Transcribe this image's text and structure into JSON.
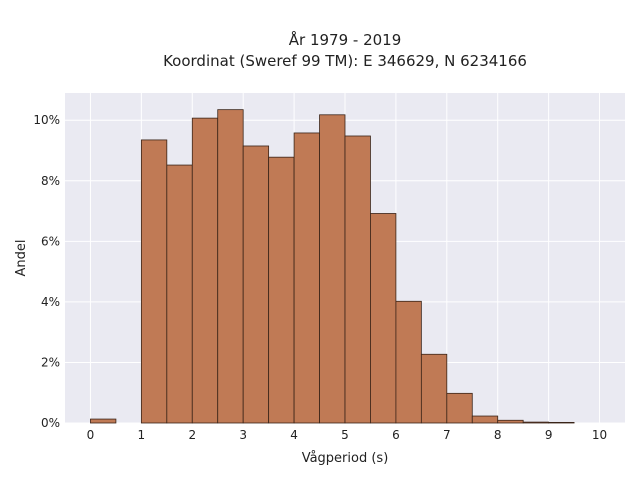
{
  "chart_data": {
    "type": "bar",
    "title_lines": [
      "År 1979 - 2019",
      "Koordinat (Sweref 99 TM): E 346629, N 6234166"
    ],
    "xlabel": "Vågperiod (s)",
    "ylabel": "Andel",
    "xlim": [
      -0.5,
      10.5
    ],
    "ylim": [
      0,
      10.9
    ],
    "x_ticks": [
      0,
      1,
      2,
      3,
      4,
      5,
      6,
      7,
      8,
      9,
      10
    ],
    "y_ticks": [
      0,
      2,
      4,
      6,
      8,
      10
    ],
    "y_tick_labels": [
      "0%",
      "2%",
      "4%",
      "6%",
      "8%",
      "10%"
    ],
    "bin_width": 0.5,
    "bins": [
      {
        "start": 0.0,
        "value": 0.13
      },
      {
        "start": 0.5,
        "value": 0.0
      },
      {
        "start": 1.0,
        "value": 9.35
      },
      {
        "start": 1.5,
        "value": 8.52
      },
      {
        "start": 2.0,
        "value": 10.07
      },
      {
        "start": 2.5,
        "value": 10.35
      },
      {
        "start": 3.0,
        "value": 9.15
      },
      {
        "start": 3.5,
        "value": 8.78
      },
      {
        "start": 4.0,
        "value": 9.58
      },
      {
        "start": 4.5,
        "value": 10.18
      },
      {
        "start": 5.0,
        "value": 9.48
      },
      {
        "start": 5.5,
        "value": 6.92
      },
      {
        "start": 6.0,
        "value": 4.02
      },
      {
        "start": 6.5,
        "value": 2.27
      },
      {
        "start": 7.0,
        "value": 0.98
      },
      {
        "start": 7.5,
        "value": 0.23
      },
      {
        "start": 8.0,
        "value": 0.09
      },
      {
        "start": 8.5,
        "value": 0.03
      },
      {
        "start": 9.0,
        "value": 0.02
      },
      {
        "start": 9.5,
        "value": 0.0
      }
    ],
    "grid": true,
    "bar_color": "#c07a55",
    "bar_edge_color": "#3a2418",
    "plot_background": "#eaeaf2"
  }
}
